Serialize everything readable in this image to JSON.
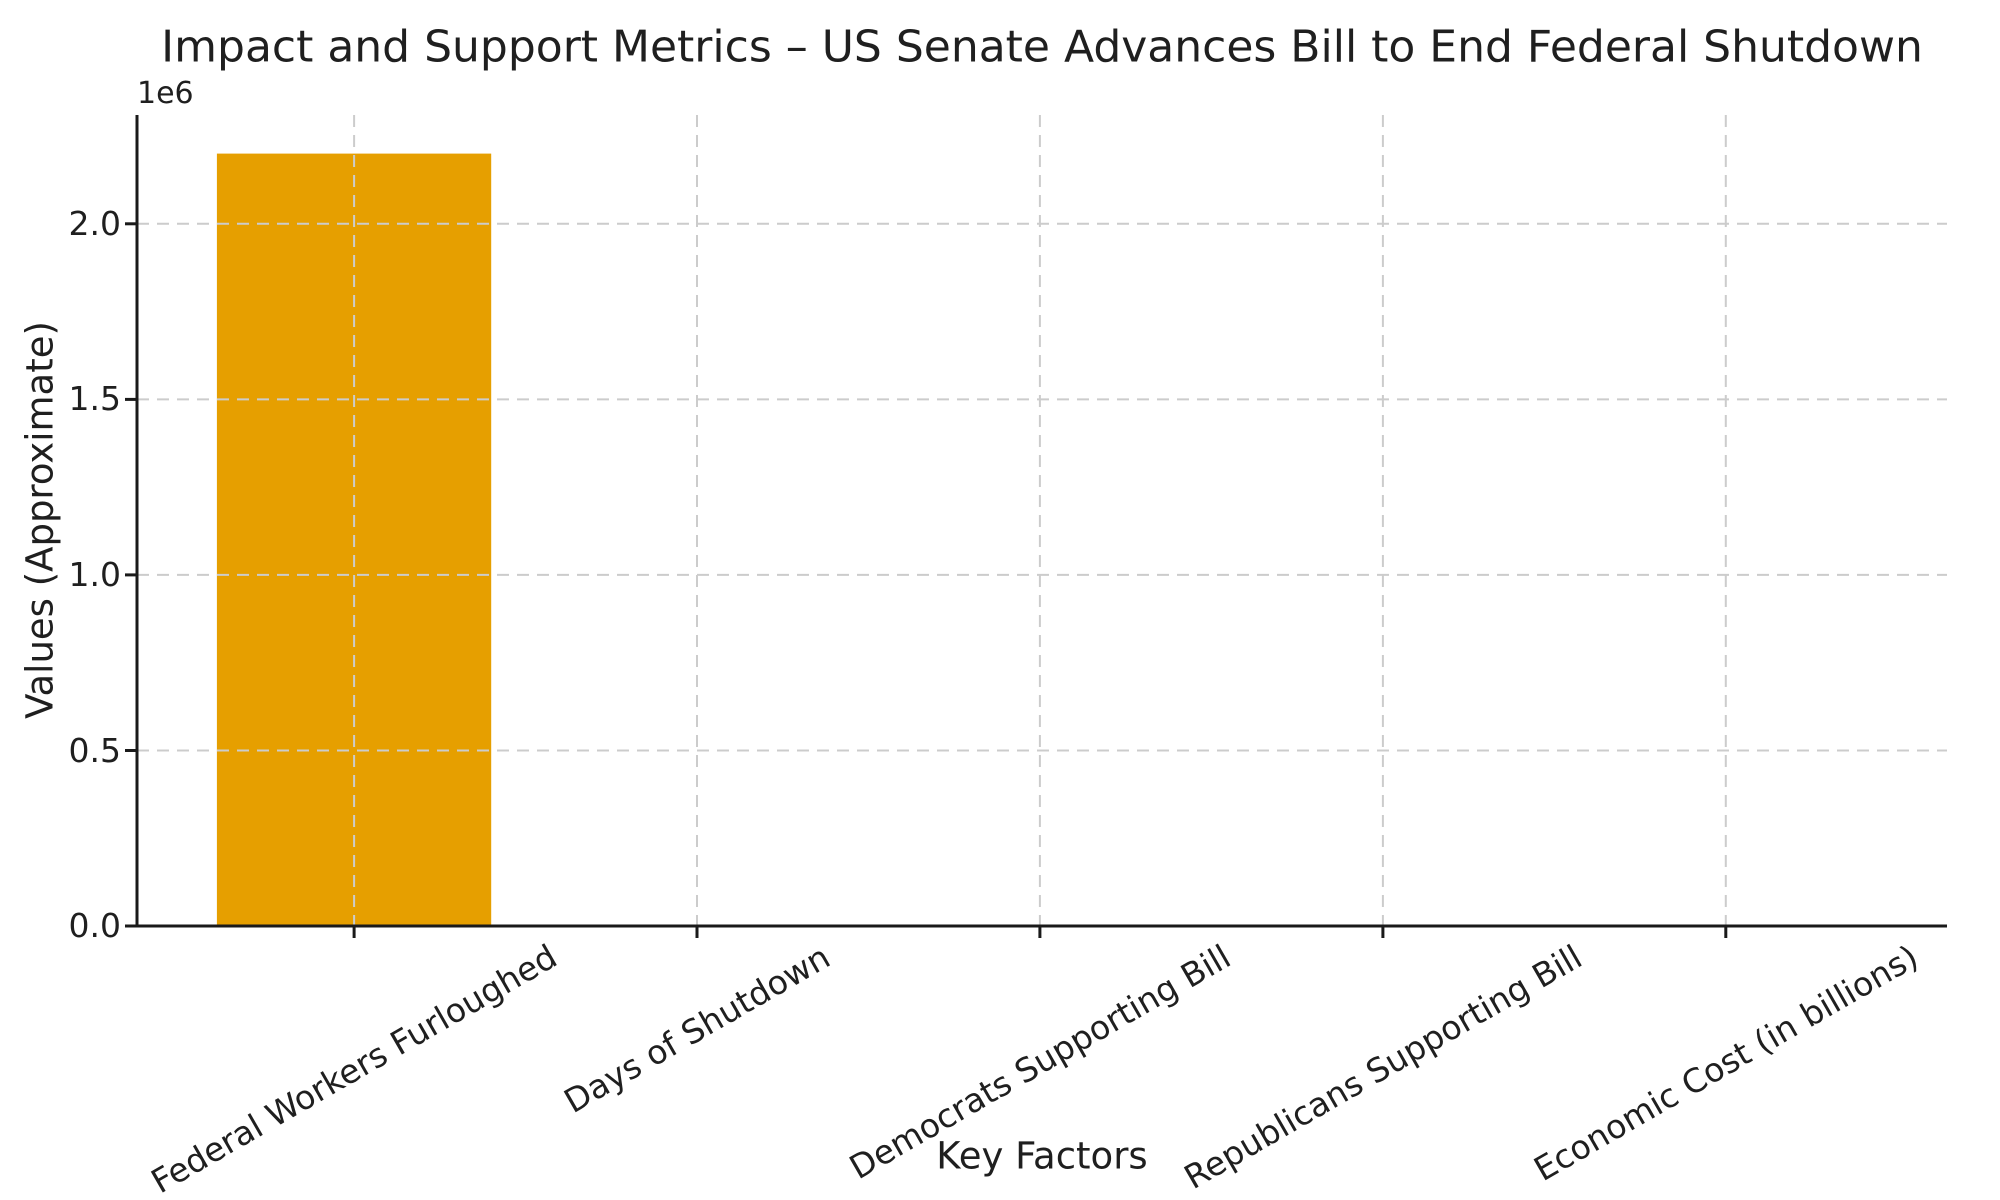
{
  "chart_data": {
    "type": "bar",
    "title": "Impact and Support Metrics – US Senate Advances Bill to End Federal Shutdown",
    "xlabel": "Key Factors",
    "ylabel": "Values (Approximate)",
    "y_offset_label": "1e6",
    "categories": [
      "Federal Workers Furloughed",
      "Days of Shutdown",
      "Democrats Supporting Bill",
      "Republicans Supporting Bill",
      "Economic Cost (in billions)"
    ],
    "values": [
      2200000,
      0,
      0,
      0,
      0
    ],
    "bar_color": "#E69F00",
    "bar_width_units": 0.8,
    "ylim": [
      0,
      2310000
    ],
    "yticks": [
      {
        "value": 0,
        "label": "0.0"
      },
      {
        "value": 500000,
        "label": "0.5"
      },
      {
        "value": 1000000,
        "label": "1.0"
      },
      {
        "value": 1500000,
        "label": "1.5"
      },
      {
        "value": 2000000,
        "label": "2.0"
      }
    ],
    "grid": "dashed-gray-both-axes-on-top-of-bars",
    "grid_color": "#cccccc",
    "axis_color": "#1a1a1a",
    "x_tick_rotation_deg": 30,
    "legend": "none"
  }
}
